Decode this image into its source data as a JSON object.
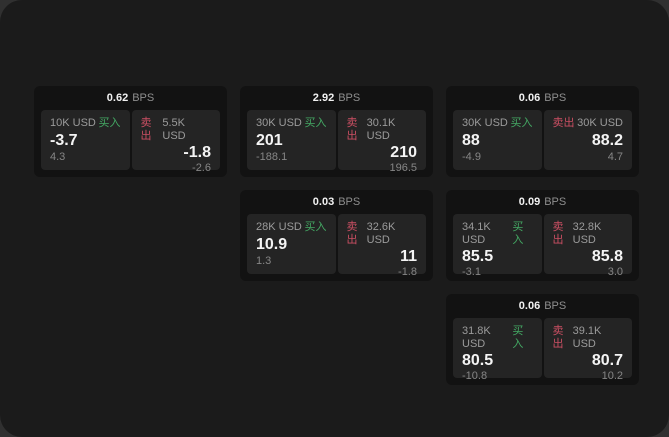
{
  "page": {
    "unit_label": "BPS",
    "buy_label": "买入",
    "sell_label": "卖出"
  },
  "colors": {
    "buy_green": "#44a964",
    "sell_red": "#cb4f63",
    "card_bg": "#121212",
    "tile_bg": "#242424",
    "screen_bg": "#1b1b1b"
  },
  "cards": [
    {
      "bps": "0.62",
      "buy": {
        "amount": "10K USD",
        "value": "-3.7",
        "sub": "4.3"
      },
      "sell": {
        "amount": "5.5K USD",
        "value": "-1.8",
        "sub": "-2.6"
      }
    },
    {
      "bps": "2.92",
      "buy": {
        "amount": "30K USD",
        "value": "201",
        "sub": "-188.1"
      },
      "sell": {
        "amount": "30.1K USD",
        "value": "210",
        "sub": "196.5"
      }
    },
    {
      "bps": "0.06",
      "buy": {
        "amount": "30K USD",
        "value": "88",
        "sub": "-4.9"
      },
      "sell": {
        "amount": "30K USD",
        "value": "88.2",
        "sub": "4.7"
      }
    },
    {
      "bps": "0.03",
      "buy": {
        "amount": "28K USD",
        "value": "10.9",
        "sub": "1.3"
      },
      "sell": {
        "amount": "32.6K USD",
        "value": "11",
        "sub": "-1.8"
      }
    },
    {
      "bps": "0.09",
      "buy": {
        "amount": "34.1K USD",
        "value": "85.5",
        "sub": "-3.1"
      },
      "sell": {
        "amount": "32.8K USD",
        "value": "85.8",
        "sub": "3.0"
      }
    },
    {
      "bps": "0.06",
      "buy": {
        "amount": "31.8K USD",
        "value": "80.5",
        "sub": "-10.8"
      },
      "sell": {
        "amount": "39.1K USD",
        "value": "80.7",
        "sub": "10.2"
      }
    }
  ]
}
